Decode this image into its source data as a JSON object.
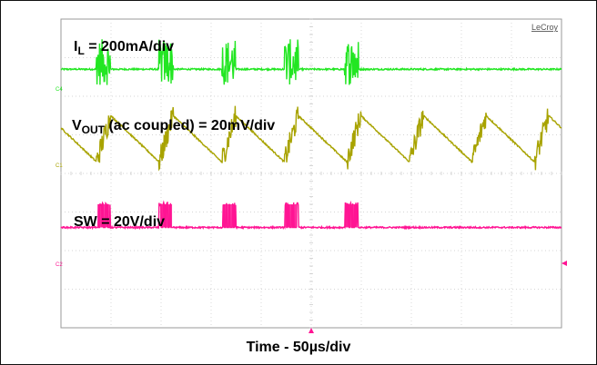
{
  "chart_data": {
    "type": "line",
    "title": "",
    "brand": "LeCroy",
    "xlabel": "Time - 50µs/div",
    "grid": {
      "x_divisions": 10,
      "y_divisions": 8,
      "visible": true
    },
    "burst_centers_div": [
      0.85,
      2.1,
      3.35,
      4.6,
      5.8
    ],
    "burst_width_div": 0.28,
    "series": [
      {
        "name": "IL",
        "label": {
          "main": "I",
          "sub": "L",
          "rest": " = 200mA/div"
        },
        "channel": "C4",
        "color": "#22e622",
        "baseline_div": 6.7,
        "burst_amplitude_div": 0.6
      },
      {
        "name": "VOUT",
        "label": {
          "main": "V",
          "sub": "OUT",
          "rest": " (ac coupled) = 20mV/div"
        },
        "channel": "C1",
        "color": "#a8a300",
        "baseline_div": 4.9,
        "ripple_amplitude_div": 0.6
      },
      {
        "name": "SW",
        "label": {
          "main": "SW = 20V/div",
          "sub": "",
          "rest": ""
        },
        "channel": "C2",
        "color": "#ff1493",
        "baseline_div": 2.6,
        "burst_high_div": 3.2
      }
    ]
  }
}
